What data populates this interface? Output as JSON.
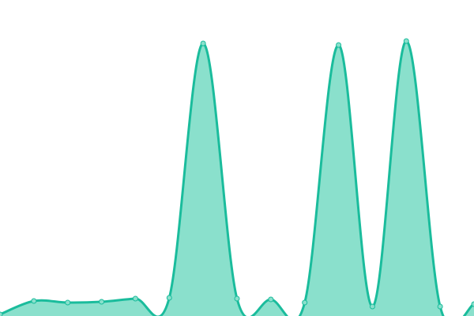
{
  "chart_data": {
    "type": "area",
    "title": "",
    "xlabel": "",
    "ylabel": "",
    "x": [
      0,
      1,
      2,
      3,
      4,
      5,
      6,
      7,
      8,
      9,
      10,
      11,
      12,
      13,
      14
    ],
    "values": [
      2,
      19,
      17,
      18,
      22,
      23,
      345,
      22,
      21,
      17,
      343,
      12,
      348,
      12,
      15
    ],
    "ylim": [
      0,
      400
    ],
    "grid": false,
    "axes_visible": false,
    "smooth": true,
    "markers": true,
    "colors": {
      "line": "#1abc9c",
      "fill": "#8ae0cc",
      "marker_fill": "#8ae0cc",
      "marker_stroke": "#1abc9c"
    }
  }
}
